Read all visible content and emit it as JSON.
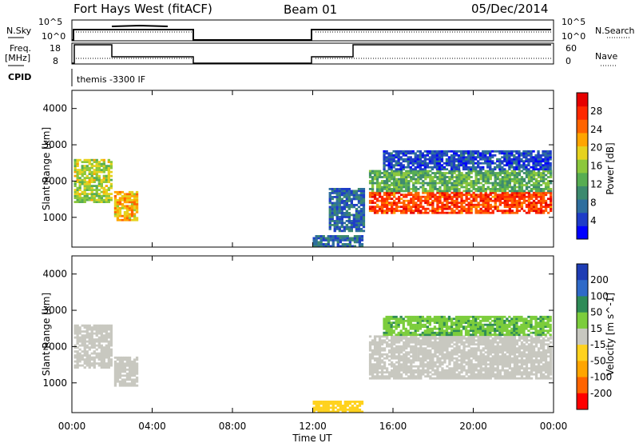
{
  "header": {
    "title": "Fort Hays West (fitACF)",
    "beam": "Beam 01",
    "date": "05/Dec/2014"
  },
  "top_panels": {
    "nsky_label": "N.Sky",
    "nsky_ticks": [
      "10^5",
      "10^0"
    ],
    "nsearch_label": "N.Search",
    "nsearch_ticks": [
      "10^5",
      "10^0"
    ],
    "freq_label": "Freq.",
    "freq_unit": "[MHz]",
    "freq_ticks": [
      "18",
      "8"
    ],
    "nave_label": "Nave",
    "nave_ticks": [
      "60",
      "0"
    ],
    "cpid_label": "CPID",
    "cpid_text": "themis -3300 IF"
  },
  "xaxis": {
    "label": "Time UT",
    "ticks": [
      "00:00",
      "04:00",
      "08:00",
      "12:00",
      "16:00",
      "20:00",
      "00:00"
    ]
  },
  "colorbars": {
    "power": {
      "label": "Power [dB]",
      "ticks": [
        "28",
        "24",
        "20",
        "16",
        "12",
        "8",
        "4"
      ],
      "colors": [
        "#0000ff",
        "#1e3cc8",
        "#2e6e9e",
        "#3c8a6e",
        "#57ad52",
        "#8cc83c",
        "#e6d21e",
        "#ffa500",
        "#ff6400",
        "#ff2800",
        "#e60000"
      ]
    },
    "velocity": {
      "label": "Velocity [m s^-1]",
      "ticks": [
        "200",
        "100",
        "50",
        "15",
        "-15",
        "-50",
        "-100",
        "-200"
      ],
      "colors": [
        "#1e3cb4",
        "#2f6ac8",
        "#2e8b57",
        "#7ccd3c",
        "#c8c8c0",
        "#ffd21e",
        "#ffa500",
        "#ff6400",
        "#ff0000"
      ]
    }
  },
  "chart_data": [
    {
      "type": "heatmap",
      "title": "",
      "xlabel": "Time UT",
      "ylabel": "Slant Range [km]",
      "xlim": [
        0,
        24
      ],
      "ylim": [
        180,
        4500
      ],
      "yticks": [
        1000,
        2000,
        3000,
        4000
      ],
      "quantity": "Power [dB]",
      "regions": [
        {
          "t0": 0.1,
          "t1": 2.0,
          "r0": 1400,
          "r1": 2600,
          "level": 16
        },
        {
          "t0": 2.1,
          "t1": 3.3,
          "r0": 900,
          "r1": 1700,
          "level": 20
        },
        {
          "t0": 14.8,
          "t1": 23.9,
          "r0": 1100,
          "r1": 1700,
          "level": 26
        },
        {
          "t0": 14.8,
          "t1": 23.9,
          "r0": 1700,
          "r1": 2300,
          "level": 12
        },
        {
          "t0": 15.5,
          "t1": 23.9,
          "r0": 2300,
          "r1": 2800,
          "level": 4
        },
        {
          "t0": 12.0,
          "t1": 14.5,
          "r0": 180,
          "r1": 500,
          "level": 6
        },
        {
          "t0": 12.8,
          "t1": 14.5,
          "r0": 600,
          "r1": 1800,
          "level": 6
        }
      ]
    },
    {
      "type": "heatmap",
      "title": "",
      "xlabel": "Time UT",
      "ylabel": "Slant Range [km]",
      "xlim": [
        0,
        24
      ],
      "ylim": [
        180,
        4500
      ],
      "yticks": [
        1000,
        2000,
        3000,
        4000
      ],
      "quantity": "Velocity [m s^-1]",
      "regions": [
        {
          "t0": 0.1,
          "t1": 2.0,
          "r0": 1400,
          "r1": 2600,
          "level": 0
        },
        {
          "t0": 2.1,
          "t1": 3.3,
          "r0": 900,
          "r1": 1700,
          "level": 0
        },
        {
          "t0": 14.8,
          "t1": 23.9,
          "r0": 1100,
          "r1": 2300,
          "level": 0
        },
        {
          "t0": 15.5,
          "t1": 23.9,
          "r0": 2300,
          "r1": 2800,
          "level": 40
        },
        {
          "t0": 12.0,
          "t1": 14.5,
          "r0": 180,
          "r1": 500,
          "level": -30
        }
      ]
    }
  ]
}
